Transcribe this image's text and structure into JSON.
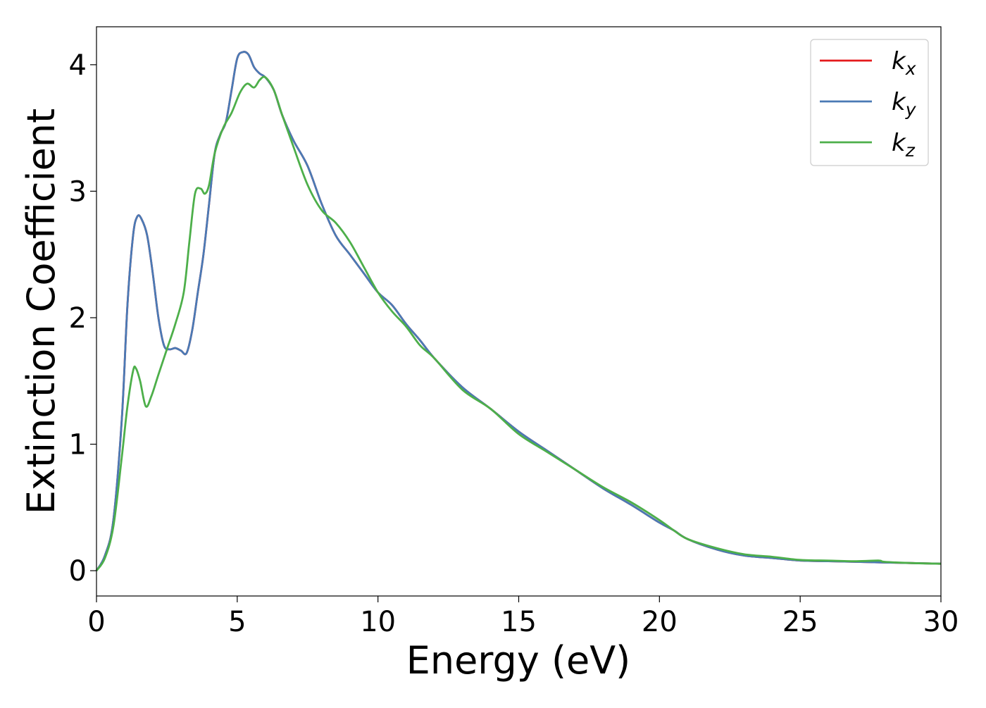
{
  "chart_data": {
    "type": "line",
    "xlabel": "Energy (eV)",
    "ylabel": "Extinction Coefficient",
    "xlim": [
      0,
      30
    ],
    "ylim": [
      -0.2,
      4.3
    ],
    "xticks": [
      0,
      5,
      10,
      15,
      20,
      25,
      30
    ],
    "yticks": [
      0,
      1,
      2,
      3,
      4
    ],
    "grid": false,
    "legend_position": "top-right",
    "series": [
      {
        "name": "k_x",
        "label_base": "k",
        "label_sub": "x",
        "color": "#e41a1c",
        "x": [
          0,
          0.3,
          0.6,
          0.9,
          1.1,
          1.3,
          1.45,
          1.6,
          1.8,
          2.0,
          2.2,
          2.4,
          2.6,
          2.8,
          3.0,
          3.2,
          3.4,
          3.6,
          3.8,
          4.0,
          4.2,
          4.4,
          4.6,
          4.8,
          5.0,
          5.2,
          5.4,
          5.6,
          5.8,
          6.0,
          6.3,
          6.6,
          7.0,
          7.5,
          8.0,
          8.5,
          9.0,
          9.5,
          10.0,
          10.5,
          11.0,
          11.5,
          12.0,
          13.0,
          14.0,
          15.0,
          16.0,
          17.0,
          18.0,
          19.0,
          20.0,
          20.5,
          21.0,
          22.0,
          23.0,
          24.0,
          25.0,
          26.0,
          27.0,
          28.0,
          29.0,
          30.0
        ],
        "y": [
          0.0,
          0.12,
          0.4,
          1.2,
          2.1,
          2.65,
          2.8,
          2.78,
          2.65,
          2.35,
          2.0,
          1.78,
          1.75,
          1.76,
          1.74,
          1.72,
          1.9,
          2.2,
          2.5,
          2.9,
          3.3,
          3.45,
          3.55,
          3.8,
          4.05,
          4.1,
          4.08,
          3.98,
          3.93,
          3.9,
          3.8,
          3.6,
          3.4,
          3.2,
          2.9,
          2.65,
          2.5,
          2.35,
          2.2,
          2.1,
          1.95,
          1.82,
          1.68,
          1.45,
          1.28,
          1.1,
          0.95,
          0.8,
          0.65,
          0.52,
          0.38,
          0.32,
          0.25,
          0.17,
          0.12,
          0.1,
          0.08,
          0.075,
          0.07,
          0.065,
          0.06,
          0.055
        ]
      },
      {
        "name": "k_y",
        "label_base": "k",
        "label_sub": "y",
        "color": "#4a7ab5",
        "x": [
          0,
          0.3,
          0.6,
          0.9,
          1.1,
          1.3,
          1.45,
          1.6,
          1.8,
          2.0,
          2.2,
          2.4,
          2.6,
          2.8,
          3.0,
          3.2,
          3.4,
          3.6,
          3.8,
          4.0,
          4.2,
          4.4,
          4.6,
          4.8,
          5.0,
          5.2,
          5.4,
          5.6,
          5.8,
          6.0,
          6.3,
          6.6,
          7.0,
          7.5,
          8.0,
          8.5,
          9.0,
          9.5,
          10.0,
          10.5,
          11.0,
          11.5,
          12.0,
          13.0,
          14.0,
          15.0,
          16.0,
          17.0,
          18.0,
          19.0,
          20.0,
          20.5,
          21.0,
          22.0,
          23.0,
          24.0,
          25.0,
          26.0,
          27.0,
          28.0,
          29.0,
          30.0
        ],
        "y": [
          0.0,
          0.12,
          0.4,
          1.2,
          2.1,
          2.65,
          2.8,
          2.78,
          2.65,
          2.35,
          2.0,
          1.78,
          1.75,
          1.76,
          1.74,
          1.72,
          1.9,
          2.2,
          2.5,
          2.9,
          3.3,
          3.45,
          3.55,
          3.8,
          4.05,
          4.1,
          4.08,
          3.98,
          3.93,
          3.9,
          3.8,
          3.6,
          3.4,
          3.2,
          2.9,
          2.65,
          2.5,
          2.35,
          2.2,
          2.1,
          1.95,
          1.82,
          1.68,
          1.45,
          1.28,
          1.1,
          0.95,
          0.8,
          0.65,
          0.52,
          0.38,
          0.32,
          0.25,
          0.17,
          0.12,
          0.1,
          0.08,
          0.075,
          0.07,
          0.065,
          0.06,
          0.055
        ]
      },
      {
        "name": "k_z",
        "label_base": "k",
        "label_sub": "z",
        "color": "#4daf4a",
        "x": [
          0,
          0.3,
          0.6,
          0.9,
          1.1,
          1.3,
          1.4,
          1.55,
          1.75,
          1.95,
          2.2,
          2.5,
          2.8,
          3.1,
          3.3,
          3.5,
          3.7,
          3.85,
          4.0,
          4.2,
          4.5,
          4.8,
          5.1,
          5.35,
          5.6,
          5.8,
          6.0,
          6.3,
          6.6,
          7.0,
          7.5,
          8.0,
          8.5,
          9.0,
          9.5,
          10.0,
          10.5,
          11.0,
          11.5,
          12.0,
          13.0,
          14.0,
          15.0,
          16.0,
          17.0,
          18.0,
          19.0,
          20.0,
          20.5,
          21.0,
          22.0,
          23.0,
          24.0,
          25.0,
          26.0,
          27.0,
          27.8,
          28.0,
          29.0,
          30.0
        ],
        "y": [
          0.0,
          0.1,
          0.35,
          0.9,
          1.3,
          1.58,
          1.6,
          1.5,
          1.3,
          1.38,
          1.55,
          1.75,
          1.95,
          2.2,
          2.6,
          2.98,
          3.02,
          2.98,
          3.05,
          3.3,
          3.5,
          3.62,
          3.78,
          3.85,
          3.82,
          3.88,
          3.9,
          3.8,
          3.6,
          3.35,
          3.05,
          2.85,
          2.75,
          2.6,
          2.4,
          2.2,
          2.05,
          1.93,
          1.78,
          1.68,
          1.43,
          1.28,
          1.08,
          0.94,
          0.8,
          0.66,
          0.54,
          0.4,
          0.32,
          0.25,
          0.18,
          0.13,
          0.11,
          0.085,
          0.08,
          0.075,
          0.08,
          0.07,
          0.06,
          0.055
        ]
      }
    ]
  }
}
